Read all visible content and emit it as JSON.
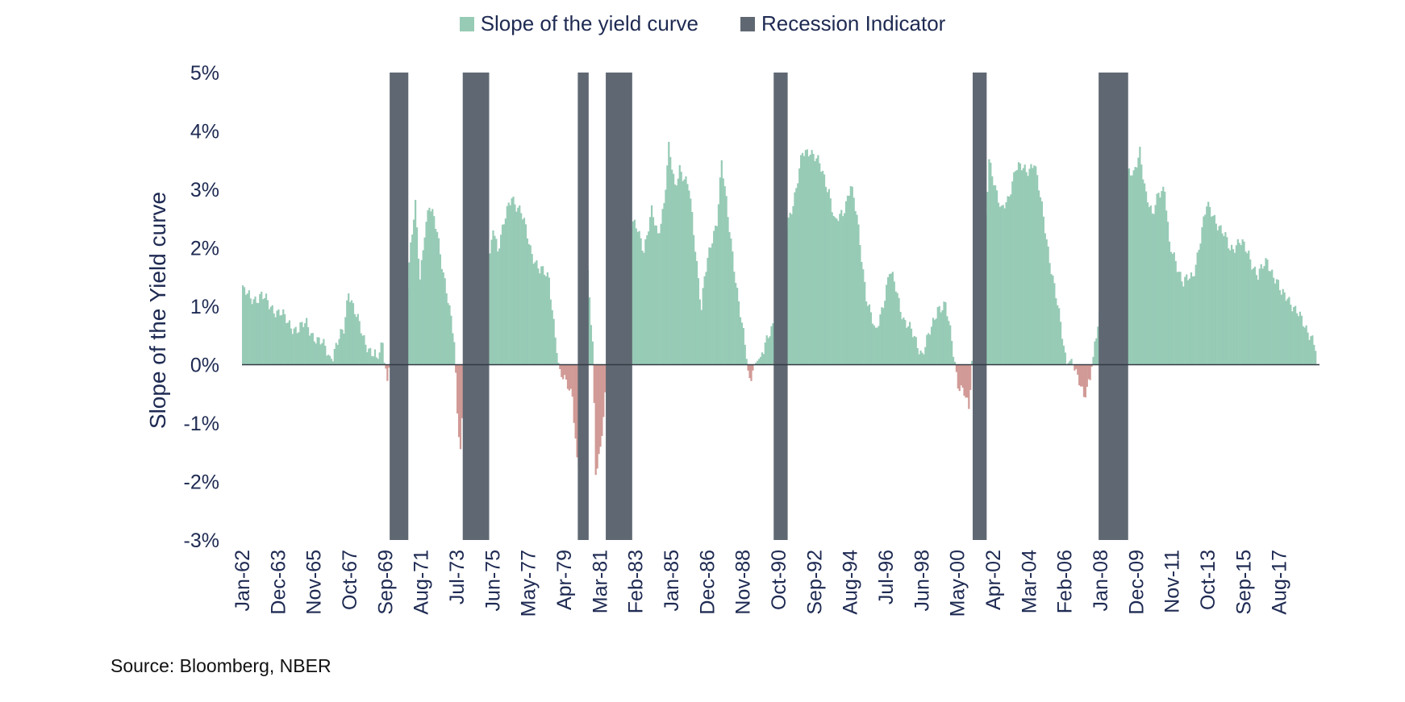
{
  "chart_data": {
    "type": "bar",
    "ylabel": "Slope of the Yield curve",
    "ylim": [
      -3,
      5
    ],
    "yticks": [
      "5%",
      "4%",
      "3%",
      "2%",
      "1%",
      "0%",
      "-1%",
      "-2%",
      "-3%"
    ],
    "ytick_values": [
      5,
      4,
      3,
      2,
      1,
      0,
      -1,
      -2,
      -3
    ],
    "xlim": [
      "1962-01",
      "2019-07"
    ],
    "x_tick_labels": [
      "Jan-62",
      "Dec-63",
      "Nov-65",
      "Oct-67",
      "Sep-69",
      "Aug-71",
      "Jul-73",
      "Jun-75",
      "May-77",
      "Apr-79",
      "Mar-81",
      "Feb-83",
      "Jan-85",
      "Dec-86",
      "Nov-88",
      "Oct-90",
      "Sep-92",
      "Aug-94",
      "Jul-96",
      "Jun-98",
      "May-00",
      "Apr-02",
      "Mar-04",
      "Feb-06",
      "Jan-08",
      "Dec-09",
      "Nov-11",
      "Oct-13",
      "Sep-15",
      "Aug-17"
    ],
    "legend": [
      {
        "name": "Slope of the yield curve",
        "color": "#97cbb6"
      },
      {
        "name": "Recession Indicator",
        "color": "#5f6872"
      }
    ],
    "colors": {
      "positive": "#97cbb6",
      "negative": "#d19a96",
      "recession": "#5f6872",
      "axis": "#333a44",
      "text": "#1e2a52"
    },
    "recessions": [
      {
        "start": "1969-12",
        "end": "1970-11"
      },
      {
        "start": "1973-11",
        "end": "1975-03"
      },
      {
        "start": "1980-01",
        "end": "1980-07"
      },
      {
        "start": "1981-07",
        "end": "1982-11"
      },
      {
        "start": "1990-07",
        "end": "1991-03"
      },
      {
        "start": "2001-03",
        "end": "2001-11"
      },
      {
        "start": "2007-12",
        "end": "2009-06"
      }
    ],
    "series": [
      {
        "name": "Slope of the yield curve",
        "x_start": "1962-01",
        "frequency": "monthly",
        "anchors": [
          [
            "1962-01",
            1.3
          ],
          [
            "1962-06",
            1.1
          ],
          [
            "1963-01",
            1.2
          ],
          [
            "1963-06",
            1.0
          ],
          [
            "1964-01",
            0.9
          ],
          [
            "1964-06",
            0.7
          ],
          [
            "1965-01",
            0.6
          ],
          [
            "1965-06",
            0.7
          ],
          [
            "1966-01",
            0.4
          ],
          [
            "1966-06",
            0.3
          ],
          [
            "1966-10",
            0.1
          ],
          [
            "1967-01",
            0.3
          ],
          [
            "1967-06",
            0.6
          ],
          [
            "1967-09",
            1.3
          ],
          [
            "1968-01",
            0.9
          ],
          [
            "1968-06",
            0.5
          ],
          [
            "1968-12",
            0.2
          ],
          [
            "1969-04",
            0.1
          ],
          [
            "1969-07",
            0.4
          ],
          [
            "1969-10",
            -0.3
          ],
          [
            "1969-12",
            0.2
          ],
          [
            "1970-11",
            1.4
          ],
          [
            "1971-01",
            2.0
          ],
          [
            "1971-04",
            2.7
          ],
          [
            "1971-07",
            1.5
          ],
          [
            "1971-10",
            2.3
          ],
          [
            "1972-01",
            2.7
          ],
          [
            "1972-06",
            2.3
          ],
          [
            "1972-10",
            1.6
          ],
          [
            "1973-02",
            0.9
          ],
          [
            "1973-05",
            0.4
          ],
          [
            "1973-07",
            -0.8
          ],
          [
            "1973-09",
            -1.4
          ],
          [
            "1973-11",
            -0.5
          ],
          [
            "1974-06",
            -1.0
          ],
          [
            "1975-03",
            1.5
          ],
          [
            "1975-06",
            2.4
          ],
          [
            "1975-09",
            2.0
          ],
          [
            "1976-02",
            2.5
          ],
          [
            "1976-06",
            2.9
          ],
          [
            "1976-12",
            2.6
          ],
          [
            "1977-06",
            2.0
          ],
          [
            "1977-12",
            1.6
          ],
          [
            "1978-06",
            1.5
          ],
          [
            "1978-10",
            0.5
          ],
          [
            "1979-01",
            -0.2
          ],
          [
            "1979-06",
            -0.3
          ],
          [
            "1979-09",
            -0.5
          ],
          [
            "1979-12",
            -1.7
          ],
          [
            "1980-03",
            -1.9
          ],
          [
            "1980-07",
            1.6
          ],
          [
            "1980-10",
            0.4
          ],
          [
            "1980-12",
            -1.9
          ],
          [
            "1981-03",
            -1.5
          ],
          [
            "1981-06",
            -0.5
          ],
          [
            "1982-11",
            2.4
          ],
          [
            "1983-03",
            2.3
          ],
          [
            "1983-07",
            2.0
          ],
          [
            "1983-12",
            2.6
          ],
          [
            "1984-04",
            2.2
          ],
          [
            "1984-08",
            2.8
          ],
          [
            "1984-11",
            3.7
          ],
          [
            "1985-03",
            3.0
          ],
          [
            "1985-06",
            3.4
          ],
          [
            "1985-12",
            3.0
          ],
          [
            "1986-04",
            2.0
          ],
          [
            "1986-08",
            1.0
          ],
          [
            "1986-10",
            1.5
          ],
          [
            "1987-02",
            2.0
          ],
          [
            "1987-06",
            2.5
          ],
          [
            "1987-09",
            3.5
          ],
          [
            "1988-01",
            2.5
          ],
          [
            "1988-06",
            1.5
          ],
          [
            "1988-12",
            0.3
          ],
          [
            "1989-03",
            -0.3
          ],
          [
            "1989-06",
            0.0
          ],
          [
            "1989-12",
            0.2
          ],
          [
            "1990-03",
            0.5
          ],
          [
            "1990-07",
            0.8
          ],
          [
            "1991-03",
            2.4
          ],
          [
            "1991-09",
            3.0
          ],
          [
            "1992-01",
            3.6
          ],
          [
            "1992-06",
            3.7
          ],
          [
            "1992-12",
            3.4
          ],
          [
            "1993-06",
            3.0
          ],
          [
            "1993-10",
            2.4
          ],
          [
            "1994-03",
            2.6
          ],
          [
            "1994-08",
            3.1
          ],
          [
            "1994-12",
            2.5
          ],
          [
            "1995-06",
            1.2
          ],
          [
            "1995-12",
            0.5
          ],
          [
            "1996-06",
            1.2
          ],
          [
            "1996-09",
            1.6
          ],
          [
            "1997-01",
            1.3
          ],
          [
            "1997-06",
            0.8
          ],
          [
            "1997-12",
            0.5
          ],
          [
            "1998-06",
            0.2
          ],
          [
            "1998-12",
            0.6
          ],
          [
            "1999-04",
            1.0
          ],
          [
            "1999-09",
            1.0
          ],
          [
            "2000-01",
            0.4
          ],
          [
            "2000-05",
            -0.3
          ],
          [
            "2000-09",
            -0.5
          ],
          [
            "2000-12",
            -0.8
          ],
          [
            "2001-03",
            0.5
          ],
          [
            "2001-11",
            2.5
          ],
          [
            "2002-01",
            3.5
          ],
          [
            "2002-04",
            3.2
          ],
          [
            "2002-09",
            2.6
          ],
          [
            "2003-01",
            2.8
          ],
          [
            "2003-06",
            3.4
          ],
          [
            "2004-01",
            3.3
          ],
          [
            "2004-06",
            3.5
          ],
          [
            "2004-12",
            2.5
          ],
          [
            "2005-06",
            1.5
          ],
          [
            "2005-12",
            0.5
          ],
          [
            "2006-03",
            0.0
          ],
          [
            "2006-06",
            0.1
          ],
          [
            "2006-09",
            -0.2
          ],
          [
            "2007-02",
            -0.5
          ],
          [
            "2007-06",
            -0.2
          ],
          [
            "2007-12",
            0.8
          ],
          [
            "2009-06",
            3.3
          ],
          [
            "2009-10",
            3.2
          ],
          [
            "2010-02",
            3.7
          ],
          [
            "2010-06",
            2.9
          ],
          [
            "2010-10",
            2.5
          ],
          [
            "2011-02",
            3.0
          ],
          [
            "2011-06",
            3.0
          ],
          [
            "2011-09",
            2.0
          ],
          [
            "2012-01",
            1.8
          ],
          [
            "2012-06",
            1.4
          ],
          [
            "2012-12",
            1.5
          ],
          [
            "2013-06",
            2.3
          ],
          [
            "2013-09",
            2.7
          ],
          [
            "2014-01",
            2.6
          ],
          [
            "2014-06",
            2.3
          ],
          [
            "2014-12",
            2.0
          ],
          [
            "2015-06",
            2.1
          ],
          [
            "2015-12",
            1.9
          ],
          [
            "2016-06",
            1.5
          ],
          [
            "2016-12",
            1.8
          ],
          [
            "2017-03",
            1.6
          ],
          [
            "2017-09",
            1.2
          ],
          [
            "2018-01",
            1.2
          ],
          [
            "2018-06",
            0.9
          ],
          [
            "2018-12",
            0.7
          ],
          [
            "2019-04",
            0.5
          ],
          [
            "2019-07",
            0.25
          ]
        ]
      }
    ],
    "source": "Source: Bloomberg, NBER"
  }
}
